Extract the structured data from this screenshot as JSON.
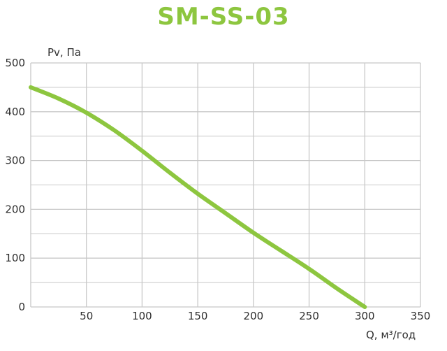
{
  "colors": {
    "accent": "#8dc63f",
    "grid": "#c8c8c8",
    "text": "#2e2e2e"
  },
  "chart_data": {
    "type": "line",
    "title": "SM-SS-03",
    "xlabel": "Q, м³/год",
    "ylabel": "Pv, Па",
    "xlim": [
      0,
      350
    ],
    "ylim": [
      0,
      500
    ],
    "x_ticks": [
      50,
      100,
      150,
      200,
      250,
      300,
      350
    ],
    "y_ticks": [
      0,
      100,
      200,
      300,
      400,
      500
    ],
    "grid": true,
    "series": [
      {
        "x": [
          0,
          25,
          50,
          75,
          100,
          125,
          150,
          175,
          200,
          225,
          250,
          275,
          300
        ],
        "y": [
          450,
          427,
          398,
          362,
          320,
          275,
          232,
          192,
          152,
          115,
          78,
          38,
          0
        ]
      }
    ]
  }
}
